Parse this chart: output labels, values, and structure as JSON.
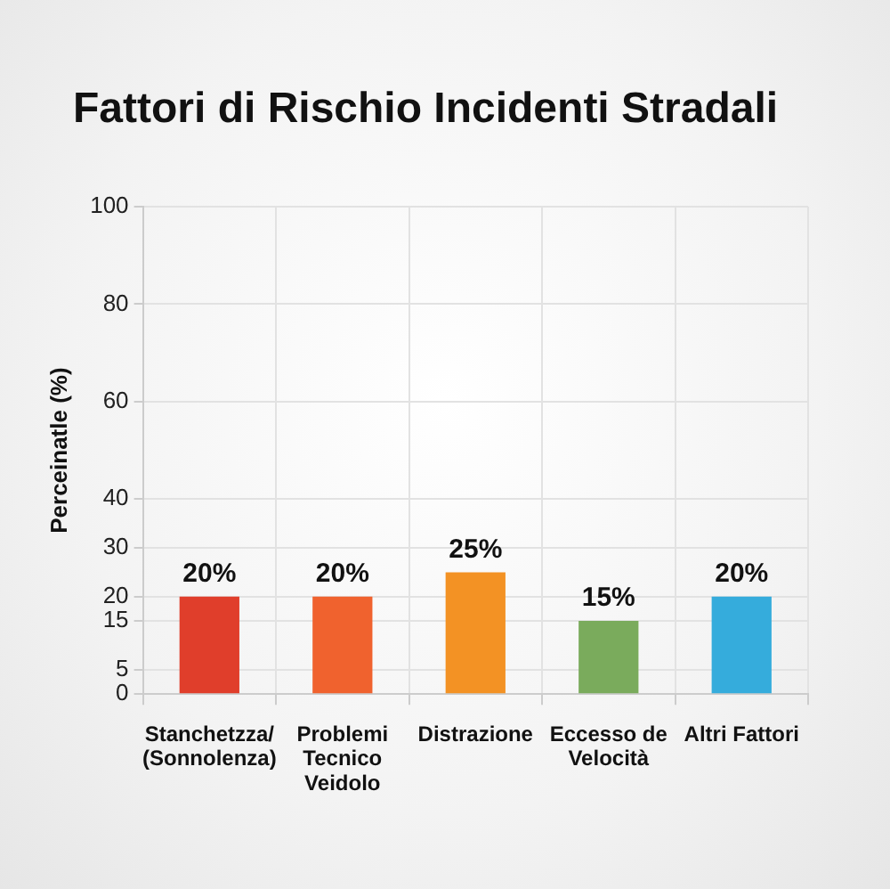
{
  "chart_data": {
    "type": "bar",
    "title": "Fattori di Rischio Incidenti Stradali",
    "ylabel": "Perceinatle (%)",
    "categories": [
      "Stanchetzza/ (Sonnolenza)",
      "Problemi Tecnico Veidolo",
      "Distrazione",
      "Eccesso de Velocità",
      "Altri Fattori"
    ],
    "values": [
      20,
      20,
      25,
      15,
      20
    ],
    "colors": [
      "#e03e2b",
      "#f0622e",
      "#f39224",
      "#7aab5c",
      "#35acdc"
    ],
    "value_labels": [
      "20%",
      "20%",
      "25%",
      "15%",
      "20%"
    ],
    "ylim": [
      0,
      100
    ],
    "yticks": [
      0,
      5,
      15,
      20,
      30,
      40,
      60,
      80,
      100
    ],
    "grid": true
  }
}
